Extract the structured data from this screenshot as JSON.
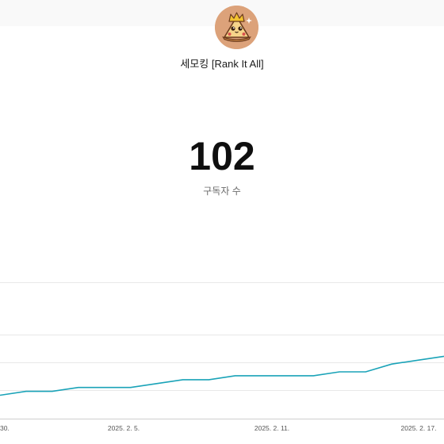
{
  "channel": {
    "name": "세모킹 [Rank It All]",
    "avatar_icon": "pizza-crown-avatar-icon"
  },
  "stats": {
    "subscriber_count": "102",
    "subscriber_label": "구독자 수"
  },
  "chart_data": {
    "type": "line",
    "x_tick_labels": [
      "30.",
      "2025. 2. 5.",
      "2025. 2. 11.",
      "2025. 2. 17."
    ],
    "series": [
      {
        "values": [
          91,
          92,
          92,
          93,
          93,
          93,
          94,
          95,
          95,
          96,
          96,
          96,
          96,
          97,
          97,
          99,
          100,
          101
        ]
      }
    ],
    "line_color": "#1aa3b8",
    "grid": true
  }
}
